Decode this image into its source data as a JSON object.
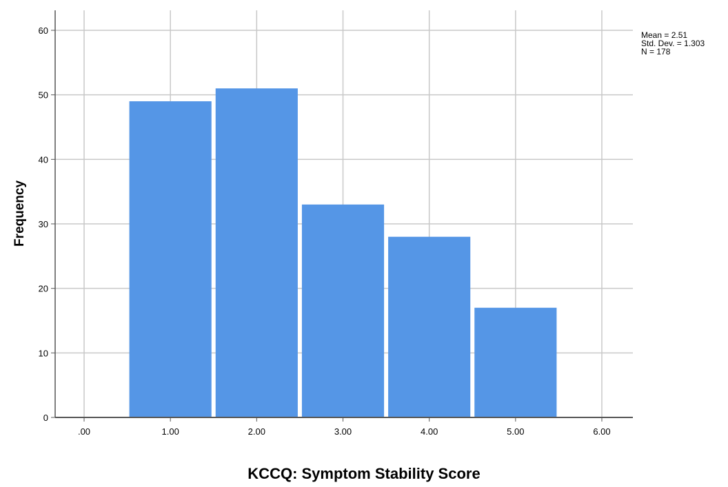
{
  "chart_data": {
    "type": "bar",
    "xlabel": "KCCQ: Symptom Stability Score",
    "ylabel": "Frequency",
    "x_ticks": [
      ".00",
      "1.00",
      "2.00",
      "3.00",
      "4.00",
      "5.00",
      "6.00"
    ],
    "y_ticks": [
      "0",
      "10",
      "20",
      "30",
      "40",
      "50",
      "60"
    ],
    "ylim": [
      0,
      60
    ],
    "xlim": [
      0,
      6
    ],
    "bars": [
      {
        "x": 1,
        "value": 49
      },
      {
        "x": 2,
        "value": 51
      },
      {
        "x": 3,
        "value": 33
      },
      {
        "x": 4,
        "value": 28
      },
      {
        "x": 5,
        "value": 17
      }
    ],
    "bar_color": "#5596e6",
    "grid": true,
    "stats": {
      "mean": "Mean = 2.51",
      "std": "Std. Dev. = 1.303",
      "n": "N = 178"
    }
  }
}
